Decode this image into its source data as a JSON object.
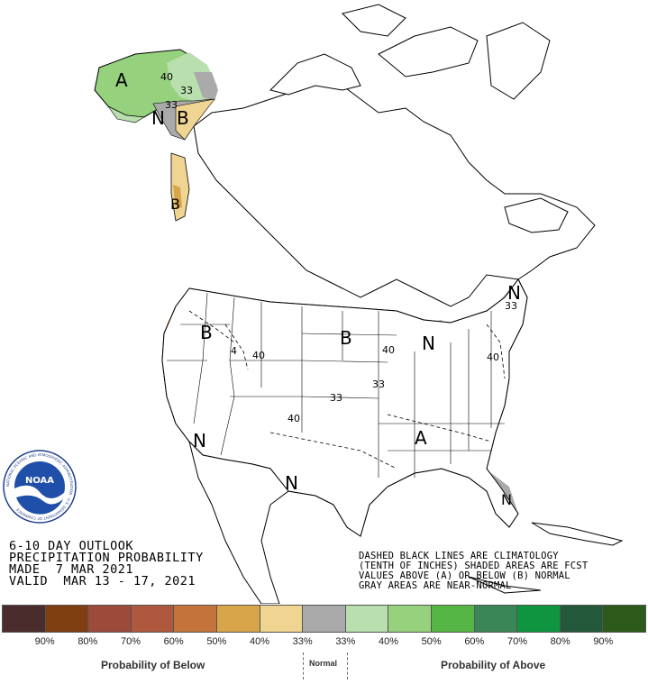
{
  "title_lines": [
    "6-10 DAY OUTLOOK",
    "PRECIPITATION PROBABILITY",
    "MADE  7 MAR 2021",
    "VALID  MAR 13 - 17, 2021"
  ],
  "notes_lines": [
    "DASHED BLACK LINES ARE CLIMATOLOGY",
    "(TENTH OF INCHES) SHADED AREAS ARE FCST",
    "VALUES ABOVE (A) OR BELOW (B) NORMAL",
    "GRAY AREAS ARE NEAR-NORMAL"
  ],
  "legend": {
    "colors": [
      "#4a2c2c",
      "#7f3f10",
      "#9c4a3a",
      "#b0583e",
      "#c4733a",
      "#d9a54b",
      "#efd492",
      "#aaaaaa",
      "#b9dfae",
      "#96d17d",
      "#55b646",
      "#3b8657",
      "#0f9440",
      "#24583a",
      "#2c5a1b"
    ],
    "ticks": [
      "90%",
      "80%",
      "70%",
      "60%",
      "50%",
      "40%",
      "33%",
      "33%",
      "40%",
      "50%",
      "60%",
      "70%",
      "80%",
      "90%"
    ],
    "below_label": "Probability of Below",
    "normal_label": "Normal",
    "above_label": "Probability of Above"
  },
  "map": {
    "region_letters": {
      "alaska_above": "A",
      "alaska_normal": "N",
      "alaska_below": "B",
      "pacnw_below": "B",
      "west_below": "B",
      "plains_below": "B",
      "southeast_above": "A",
      "northeast_normal": "N",
      "greatlakes_normal": "N",
      "southwest_normal": "N",
      "texas_normal": "N",
      "florida_normal": "N"
    },
    "contour_labels": {
      "alaska_40": "40",
      "alaska_33a": "33",
      "alaska_33b": "33",
      "west_40": "40",
      "west_4": "4",
      "plains_40": "40",
      "kansas_33": "33",
      "lakes_33": "33",
      "southern_40": "40",
      "east_40": "40",
      "northeast_33": "33"
    }
  },
  "logo": {
    "text": "NOAA",
    "ring_text": "NATIONAL OCEANIC AND ATMOSPHERIC ADMINISTRATION · U.S. DEPARTMENT OF COMMERCE"
  }
}
